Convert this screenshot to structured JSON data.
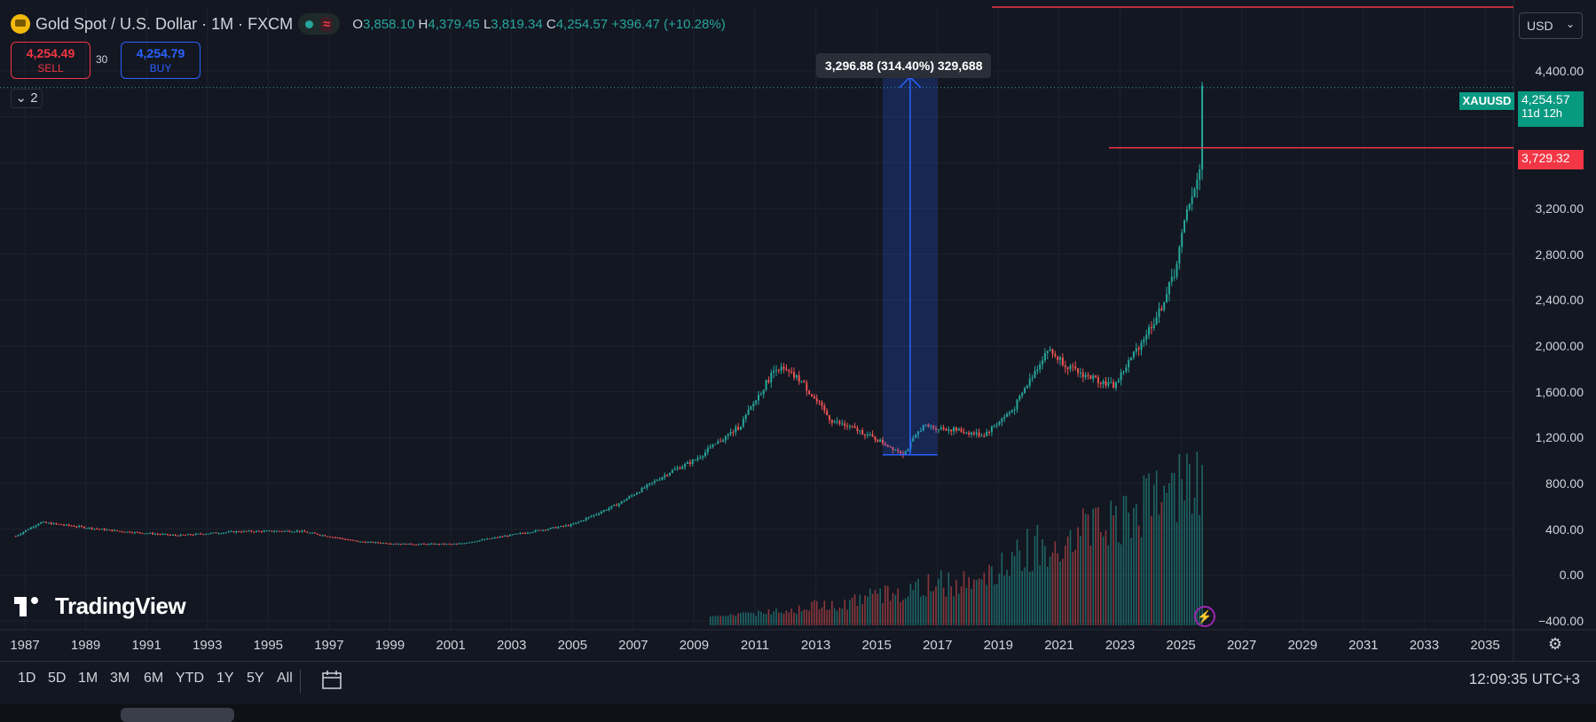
{
  "header": {
    "title": "Gold Spot / U.S. Dollar · 1M · FXCM",
    "ohlc": {
      "o_label": "O",
      "o": "3,858.10",
      "h_label": "H",
      "h": "4,379.45",
      "l_label": "L",
      "l": "3,819.34",
      "c_label": "C",
      "c": "4,254.57",
      "change": "+396.47 (+10.28%)"
    },
    "wave_glyph": "≈"
  },
  "trade": {
    "sell_price": "4,254.49",
    "sell_label": "SELL",
    "buy_price": "4,254.79",
    "buy_label": "BUY",
    "spread": "30"
  },
  "collapse_label": "⌄ 2",
  "currency": "USD",
  "price_scale": {
    "ticks": [
      "4,400.00",
      "4,000.00",
      "3,600.00",
      "3,200.00",
      "2,800.00",
      "2,400.00",
      "2,000.00",
      "1,600.00",
      "1,200.00",
      "800.00",
      "400.00",
      "0.00",
      "−400.00"
    ],
    "last_price": "4,254.57",
    "countdown": "11d 12h",
    "symbol": "XAUUSD",
    "line_price": "3,729.32"
  },
  "measure_tooltip": "3,296.88 (314.40%) 329,688",
  "time_scale": [
    "1987",
    "1989",
    "1991",
    "1993",
    "1995",
    "1997",
    "1999",
    "2001",
    "2003",
    "2005",
    "2007",
    "2009",
    "2011",
    "2013",
    "2015",
    "2017",
    "2019",
    "2021",
    "2023",
    "2025",
    "2027",
    "2029",
    "2031",
    "2033",
    "2035"
  ],
  "brand": "TradingView",
  "ranges": [
    "1D",
    "5D",
    "1M",
    "3M",
    "6M",
    "YTD",
    "1Y",
    "5Y",
    "All"
  ],
  "clock": "12:09:35 UTC+3",
  "icons": {
    "bolt": "lightning-icon",
    "gear": "settings-gear-icon",
    "calendar": "goto-date-icon"
  },
  "colors": {
    "up": "#26a69a",
    "down": "#ef5350",
    "hline": "#f23645",
    "measure": "#2962ff",
    "bg": "#131722"
  },
  "chart_data": {
    "type": "line",
    "title": "Gold Spot / U.S. Dollar · 1M · FXCM",
    "xlabel": "",
    "ylabel": "",
    "ylim": [
      -400,
      4600
    ],
    "xlim": [
      1986.7,
      2036
    ],
    "grid": true,
    "series": [
      {
        "name": "XAUUSD",
        "x": [
          1986.7,
          1987.5,
          1988.5,
          1990,
          1992,
          1994,
          1996,
          1998,
          1999.5,
          2001.2,
          2003,
          2005,
          2006.5,
          2008.2,
          2009,
          2010.5,
          2011.7,
          2012.5,
          2013.5,
          2014.5,
          2015.9,
          2016.5,
          2017.5,
          2018.5,
          2019.5,
          2020.6,
          2021.5,
          2022.8,
          2023.5,
          2024.3,
          2024.8,
          2025.3,
          2025.6,
          2025.7
        ],
        "y": [
          340,
          460,
          430,
          385,
          345,
          380,
          385,
          290,
          270,
          270,
          350,
          440,
          620,
          900,
          1000,
          1300,
          1820,
          1700,
          1350,
          1250,
          1060,
          1300,
          1270,
          1220,
          1450,
          1970,
          1780,
          1650,
          1950,
          2300,
          2650,
          3300,
          3450,
          4254.57
        ]
      }
    ],
    "annotations": {
      "measure_from": 1050,
      "measure_to": 4347,
      "measure_x": [
        2015.2,
        2017.0
      ],
      "horizontal_line": 3729.32
    }
  }
}
